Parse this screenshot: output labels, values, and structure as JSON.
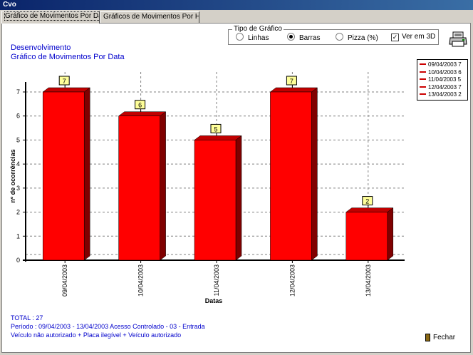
{
  "window": {
    "title": "Cvo"
  },
  "tabs": [
    {
      "label": "Gráfico de Movimentos Por Data",
      "active": true
    },
    {
      "label": "Gráficos de Movimentos Por Hora",
      "active": false
    }
  ],
  "header": {
    "line1": "Desenvolvimento",
    "line2": "Gráfico de Movimentos Por Data"
  },
  "chart_type_group": {
    "label": "Tipo de Gráfico",
    "options": [
      {
        "label": "Linhas",
        "selected": false
      },
      {
        "label": "Barras",
        "selected": true
      },
      {
        "label": "Pizza (%)",
        "selected": false
      }
    ],
    "view_3d": {
      "label": "Ver em 3D",
      "checked": true
    }
  },
  "print_icon": "printer-icon",
  "legend": {
    "entries": [
      "09/04/2003 7",
      "10/04/2003 6",
      "11/04/2003 5",
      "12/04/2003 7",
      "13/04/2003 2"
    ]
  },
  "chart_data": {
    "type": "bar",
    "categories": [
      "09/04/2003",
      "10/04/2003",
      "11/04/2003",
      "12/04/2003",
      "13/04/2003"
    ],
    "values": [
      7,
      6,
      5,
      7,
      2
    ],
    "xlabel": "Datas",
    "ylabel": "nº de ocorrências",
    "ylim": [
      0,
      7
    ],
    "yticks": [
      "0",
      "1",
      "2",
      "3",
      "4",
      "5",
      "6",
      "7"
    ],
    "data_labels": [
      "7",
      "6",
      "5",
      "7",
      "2"
    ],
    "bar_color": "#ff0000",
    "bar_side_color": "#800000",
    "bar_top_color": "#c00000",
    "three_d": true,
    "grid": true
  },
  "footer": {
    "total": "TOTAL : 27",
    "period": "Período : 09/04/2003 - 13/04/2003   Acesso Controlado - 03 - Entrada",
    "filters": "Veículo não autorizado + Placa ilegível + Veículo autorizado"
  },
  "close_button": {
    "label": "Fechar"
  }
}
